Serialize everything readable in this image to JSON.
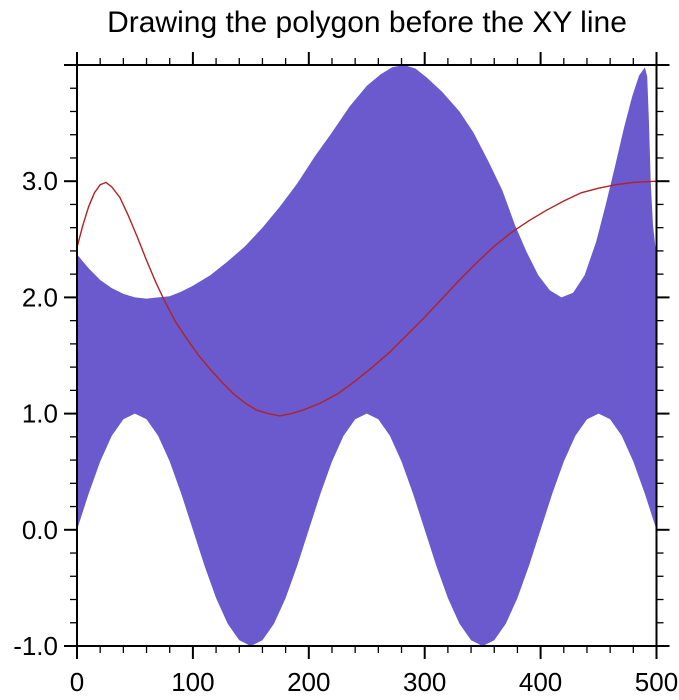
{
  "chart_data": {
    "type": "area",
    "title": "Drawing the polygon before the XY line",
    "xlabel": "",
    "ylabel": "",
    "xlim": [
      0,
      500
    ],
    "ylim": [
      -1,
      4
    ],
    "grid": false,
    "legend": "none",
    "axes": {
      "x_major": {
        "values": [
          0,
          100,
          200,
          300,
          400,
          500
        ],
        "labels": [
          "0",
          "100",
          "200",
          "300",
          "400",
          "500"
        ]
      },
      "x_minor_step": 20,
      "y_major": {
        "values": [
          -1,
          0,
          1,
          2,
          3,
          4
        ],
        "labels": [
          "-1.0",
          "0.0",
          "1.0",
          "2.0",
          "3.0",
          ""
        ]
      },
      "y_minor_step": 0.2,
      "tick_style": "outward-all-sides",
      "axis_color": "#000000"
    },
    "polygon": {
      "name": "filled-band-polygon",
      "fill_color": "#6A5ACD",
      "drawn": "before the XY line",
      "upper_boundary": [
        [
          0,
          2.37
        ],
        [
          10,
          2.25
        ],
        [
          20,
          2.15
        ],
        [
          30,
          2.08
        ],
        [
          40,
          2.03
        ],
        [
          50,
          2.0
        ],
        [
          60,
          1.99
        ],
        [
          70,
          2.0
        ],
        [
          80,
          2.01
        ],
        [
          90,
          2.05
        ],
        [
          100,
          2.1
        ],
        [
          115,
          2.19
        ],
        [
          130,
          2.31
        ],
        [
          145,
          2.44
        ],
        [
          160,
          2.6
        ],
        [
          175,
          2.78
        ],
        [
          190,
          2.98
        ],
        [
          205,
          3.21
        ],
        [
          220,
          3.42
        ],
        [
          235,
          3.64
        ],
        [
          250,
          3.82
        ],
        [
          262,
          3.92
        ],
        [
          272,
          3.98
        ],
        [
          282,
          4.0
        ],
        [
          292,
          3.97
        ],
        [
          302,
          3.89
        ],
        [
          315,
          3.77
        ],
        [
          330,
          3.6
        ],
        [
          342,
          3.42
        ],
        [
          355,
          3.17
        ],
        [
          367,
          2.92
        ],
        [
          378,
          2.62
        ],
        [
          388,
          2.39
        ],
        [
          398,
          2.19
        ],
        [
          408,
          2.06
        ],
        [
          418,
          2.0
        ],
        [
          428,
          2.04
        ],
        [
          438,
          2.19
        ],
        [
          448,
          2.48
        ],
        [
          456,
          2.79
        ],
        [
          464,
          3.12
        ],
        [
          472,
          3.46
        ],
        [
          479,
          3.73
        ],
        [
          485,
          3.91
        ],
        [
          490,
          3.98
        ],
        [
          492,
          3.9
        ],
        [
          493.5,
          3.5
        ],
        [
          495,
          3.0
        ],
        [
          497,
          2.62
        ],
        [
          499,
          2.44
        ],
        [
          500,
          2.4
        ]
      ],
      "lower_boundary": [
        [
          0,
          0
        ],
        [
          10,
          0.309
        ],
        [
          20,
          0.588
        ],
        [
          30,
          0.809
        ],
        [
          40,
          0.951
        ],
        [
          50,
          1.0
        ],
        [
          60,
          0.951
        ],
        [
          70,
          0.809
        ],
        [
          80,
          0.588
        ],
        [
          90,
          0.309
        ],
        [
          100,
          0
        ],
        [
          110,
          -0.309
        ],
        [
          120,
          -0.588
        ],
        [
          130,
          -0.809
        ],
        [
          140,
          -0.951
        ],
        [
          150,
          -1.0
        ],
        [
          160,
          -0.951
        ],
        [
          170,
          -0.809
        ],
        [
          180,
          -0.588
        ],
        [
          190,
          -0.309
        ],
        [
          200,
          0
        ],
        [
          210,
          0.309
        ],
        [
          220,
          0.588
        ],
        [
          230,
          0.809
        ],
        [
          240,
          0.951
        ],
        [
          250,
          1.0
        ],
        [
          260,
          0.951
        ],
        [
          270,
          0.809
        ],
        [
          280,
          0.588
        ],
        [
          290,
          0.309
        ],
        [
          300,
          0
        ],
        [
          310,
          -0.309
        ],
        [
          320,
          -0.588
        ],
        [
          330,
          -0.809
        ],
        [
          340,
          -0.951
        ],
        [
          350,
          -1.0
        ],
        [
          360,
          -0.951
        ],
        [
          370,
          -0.809
        ],
        [
          380,
          -0.588
        ],
        [
          390,
          -0.309
        ],
        [
          400,
          0
        ],
        [
          410,
          0.309
        ],
        [
          420,
          0.588
        ],
        [
          430,
          0.809
        ],
        [
          440,
          0.951
        ],
        [
          450,
          1.0
        ],
        [
          460,
          0.951
        ],
        [
          470,
          0.809
        ],
        [
          480,
          0.588
        ],
        [
          490,
          0.309
        ],
        [
          500,
          0
        ]
      ]
    },
    "line": {
      "name": "xy-line",
      "color": "#B22222",
      "width": 1.4,
      "drawn": "after the polygon",
      "points": [
        [
          0,
          2.43
        ],
        [
          5,
          2.62
        ],
        [
          10,
          2.78
        ],
        [
          15,
          2.9
        ],
        [
          20,
          2.97
        ],
        [
          25,
          2.99
        ],
        [
          30,
          2.95
        ],
        [
          37,
          2.86
        ],
        [
          44,
          2.71
        ],
        [
          52,
          2.52
        ],
        [
          60,
          2.32
        ],
        [
          68,
          2.13
        ],
        [
          76,
          1.96
        ],
        [
          85,
          1.79
        ],
        [
          95,
          1.64
        ],
        [
          105,
          1.5
        ],
        [
          115,
          1.38
        ],
        [
          125,
          1.27
        ],
        [
          135,
          1.17
        ],
        [
          145,
          1.09
        ],
        [
          155,
          1.03
        ],
        [
          165,
          1.0
        ],
        [
          175,
          0.98
        ],
        [
          185,
          1.0
        ],
        [
          195,
          1.03
        ],
        [
          210,
          1.09
        ],
        [
          225,
          1.17
        ],
        [
          240,
          1.28
        ],
        [
          255,
          1.4
        ],
        [
          270,
          1.53
        ],
        [
          285,
          1.68
        ],
        [
          300,
          1.83
        ],
        [
          315,
          1.99
        ],
        [
          330,
          2.15
        ],
        [
          345,
          2.3
        ],
        [
          360,
          2.44
        ],
        [
          375,
          2.56
        ],
        [
          390,
          2.66
        ],
        [
          405,
          2.75
        ],
        [
          420,
          2.83
        ],
        [
          435,
          2.9
        ],
        [
          450,
          2.94
        ],
        [
          465,
          2.97
        ],
        [
          480,
          2.99
        ],
        [
          500,
          3.0
        ]
      ]
    }
  }
}
